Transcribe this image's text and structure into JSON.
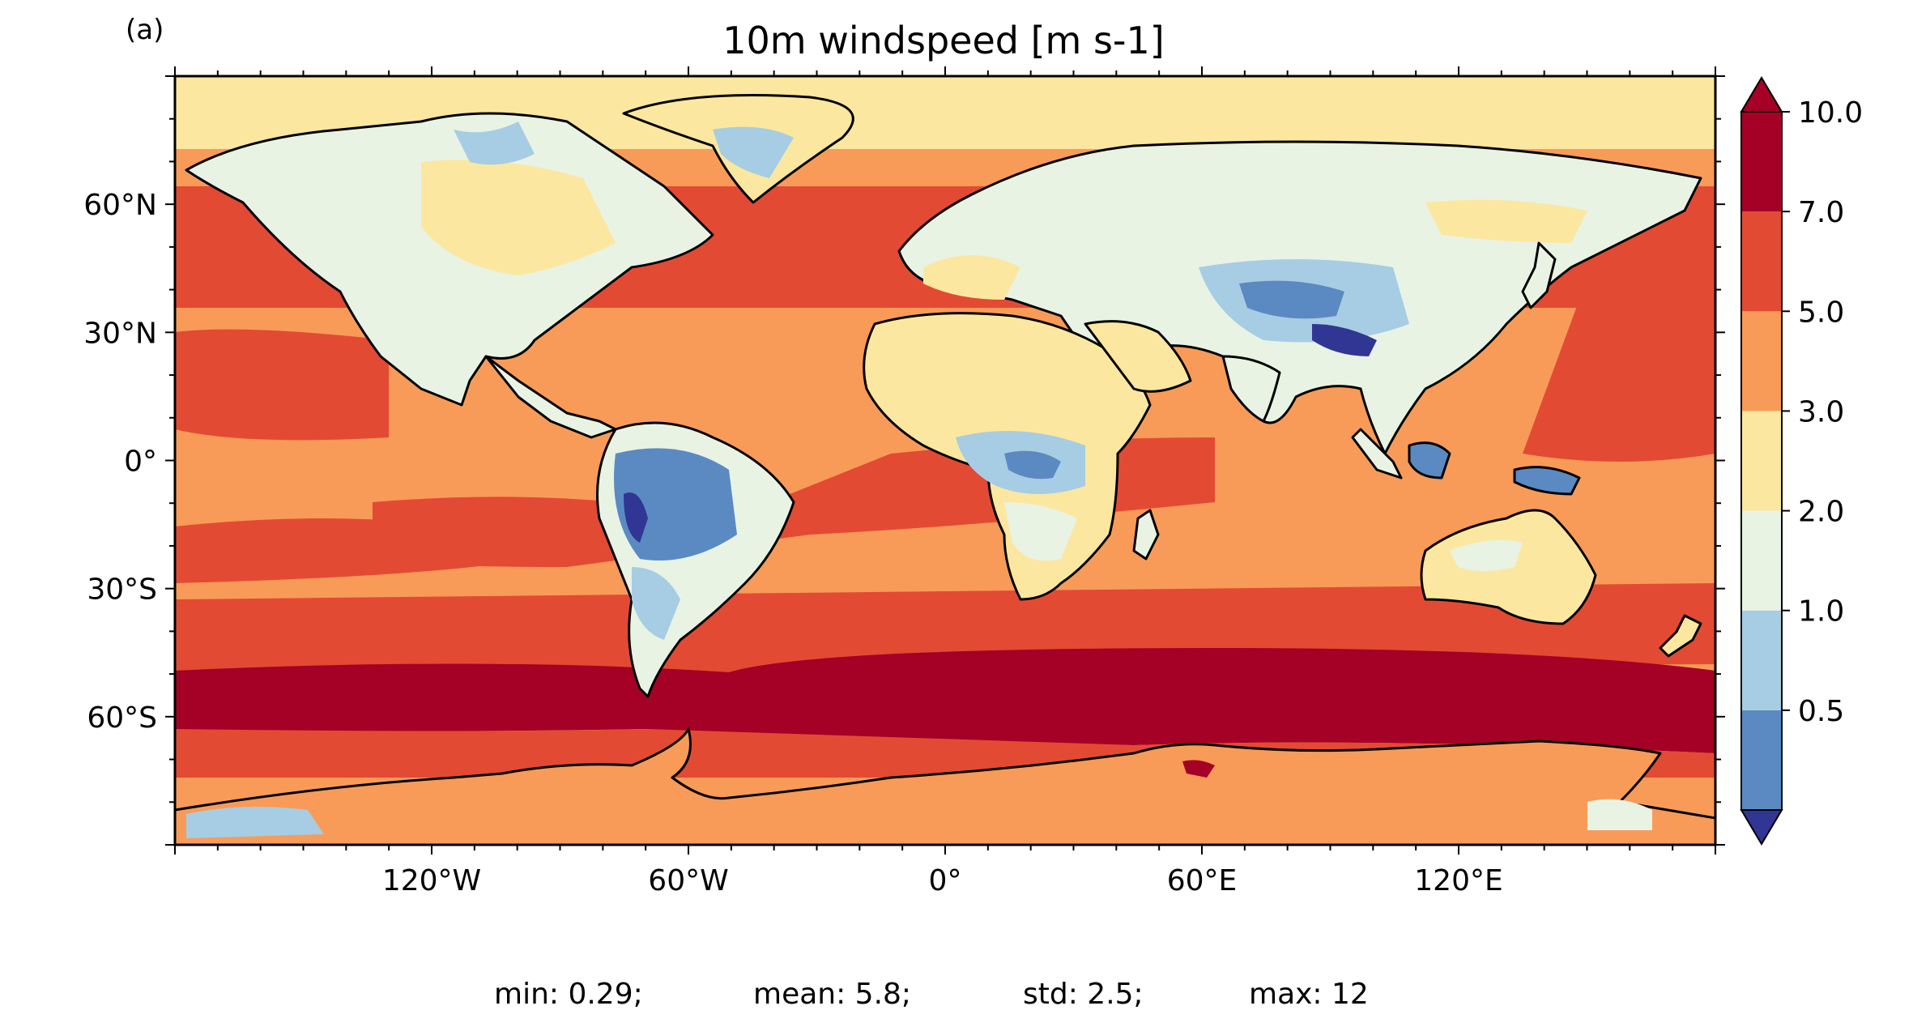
{
  "panel_label": "(a)",
  "title": "10m windspeed [m s-1]",
  "map": {
    "projection": "plate-carree",
    "lon_range": [
      -180,
      180
    ],
    "lat_range": [
      -90,
      90
    ],
    "coastlines": true,
    "x_ticks": [
      "120°W",
      "60°W",
      "0°",
      "60°E",
      "120°E"
    ],
    "x_tick_lons": [
      -120,
      -60,
      0,
      60,
      120
    ],
    "y_ticks": [
      "60°N",
      "30°N",
      "0°",
      "30°S",
      "60°S"
    ],
    "y_tick_lats": [
      60,
      30,
      0,
      -30,
      -60
    ]
  },
  "colorbar": {
    "labels": [
      "10.0",
      "7.0",
      "5.0",
      "3.0",
      "2.0",
      "1.0",
      "0.5"
    ],
    "boundaries": [
      0.5,
      1.0,
      2.0,
      3.0,
      5.0,
      7.0,
      10.0
    ],
    "colors": [
      "#5b8ac2",
      "#a6cde3",
      "#e8f3e4",
      "#fce7a0",
      "#f89b58",
      "#e34a33",
      "#a50026"
    ],
    "under_color": "#313695",
    "over_color": "#a50026",
    "extend": "both"
  },
  "stats": {
    "min": "min: 0.29;",
    "mean": "mean: 5.8;",
    "std": "std: 2.5;",
    "max": "max: 12"
  }
}
